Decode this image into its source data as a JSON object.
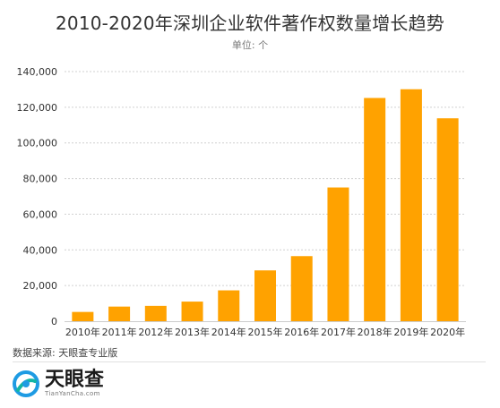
{
  "header": {
    "title": "2010-2020年深圳企业软件著作权数量增长趋势",
    "unit": "单位: 个"
  },
  "footer": {
    "source": "数据来源: 天眼查专业版",
    "brand_name": "天眼查",
    "brand_url": "TianYanCha.com"
  },
  "colors": {
    "bar": "#FFA200",
    "grid": "#d0d0d0",
    "axis_text": "#333333",
    "logo_primary": "#1E9BE3",
    "logo_secondary": "#12B5A5"
  },
  "chart_data": {
    "type": "bar",
    "categories": [
      "2010年",
      "2011年",
      "2012年",
      "2013年",
      "2014年",
      "2015年",
      "2016年",
      "2017年",
      "2018年",
      "2019年",
      "2020年"
    ],
    "values": [
      5200,
      8200,
      8600,
      11000,
      17300,
      28500,
      36500,
      75000,
      125200,
      130100,
      113800
    ],
    "ylim": [
      0,
      140000
    ],
    "yticks": [
      0,
      20000,
      40000,
      60000,
      80000,
      100000,
      120000,
      140000
    ],
    "ytick_labels": [
      "0",
      "20,000",
      "40,000",
      "60,000",
      "80,000",
      "100,000",
      "120,000",
      "140,000"
    ],
    "grid": true,
    "legend": "none"
  }
}
